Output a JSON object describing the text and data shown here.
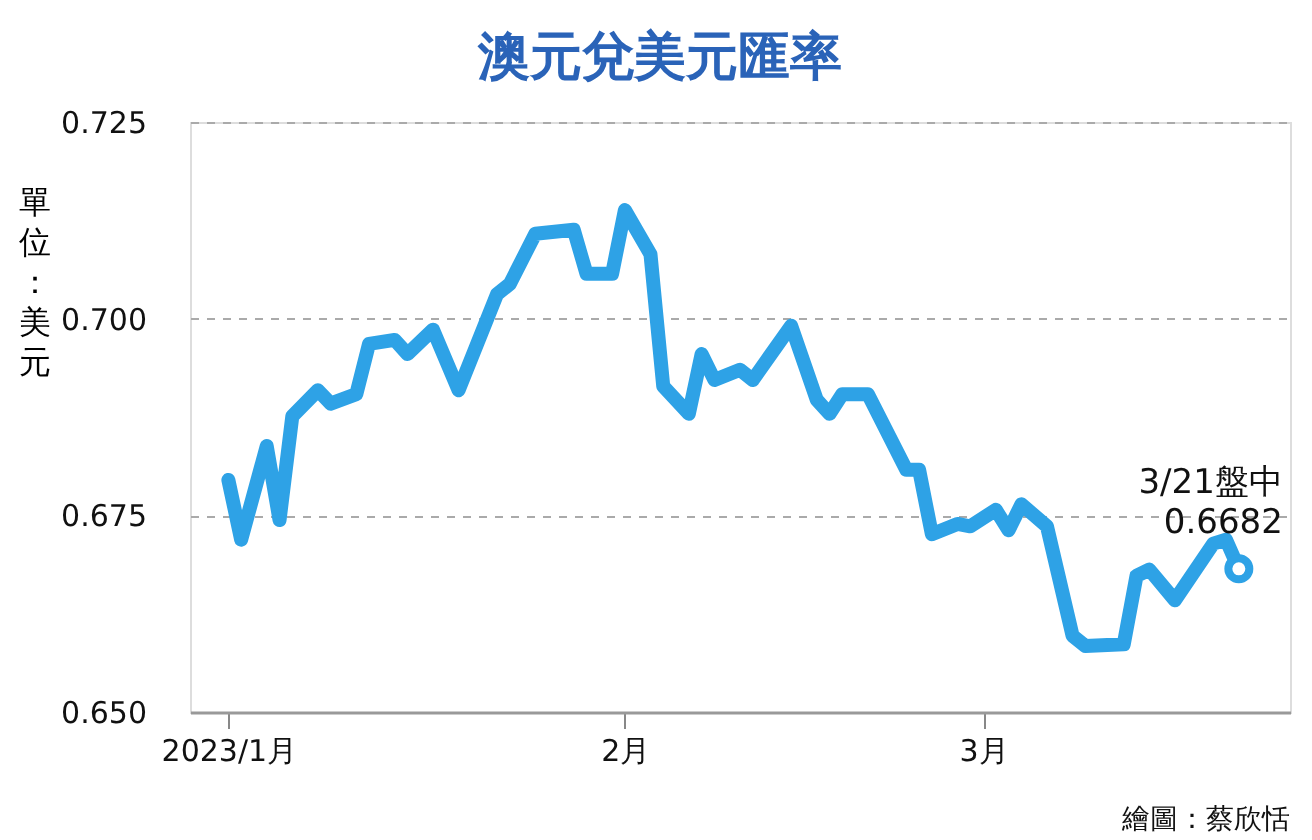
{
  "chart_data": {
    "type": "line",
    "title": "澳元兌美元匯率",
    "ylabel": "單位：美元",
    "x": [
      "2023-01-01",
      "2023-01-02",
      "2023-01-04",
      "2023-01-05",
      "2023-01-06",
      "2023-01-08",
      "2023-01-09",
      "2023-01-11",
      "2023-01-12",
      "2023-01-14",
      "2023-01-15",
      "2023-01-17",
      "2023-01-19",
      "2023-01-22",
      "2023-01-23",
      "2023-01-25",
      "2023-01-28",
      "2023-01-29",
      "2023-01-31",
      "2023-02-01",
      "2023-02-03",
      "2023-02-04",
      "2023-02-06",
      "2023-02-07",
      "2023-02-08",
      "2023-02-10",
      "2023-02-11",
      "2023-02-14",
      "2023-02-16",
      "2023-02-17",
      "2023-02-18",
      "2023-02-20",
      "2023-02-23",
      "2023-02-24",
      "2023-02-25",
      "2023-02-27",
      "2023-02-28",
      "2023-03-02",
      "2023-03-03",
      "2023-03-04",
      "2023-03-06",
      "2023-03-08",
      "2023-03-09",
      "2023-03-12",
      "2023-03-13",
      "2023-03-14",
      "2023-03-16",
      "2023-03-19",
      "2023-03-20",
      "2023-03-21"
    ],
    "series": [
      {
        "color": "#2ea2e6",
        "values": [
          0.6795,
          0.6719,
          0.6838,
          0.6744,
          0.6876,
          0.6909,
          0.6892,
          0.6904,
          0.6968,
          0.6973,
          0.6955,
          0.6986,
          0.6909,
          0.7031,
          0.7044,
          0.7108,
          0.7113,
          0.7057,
          0.7057,
          0.7138,
          0.7082,
          0.6914,
          0.6879,
          0.6955,
          0.6922,
          0.6935,
          0.6922,
          0.6991,
          0.6897,
          0.6879,
          0.6904,
          0.6904,
          0.6808,
          0.6808,
          0.6726,
          0.6739,
          0.6736,
          0.6757,
          0.6731,
          0.6764,
          0.6736,
          0.6597,
          0.6584,
          0.6586,
          0.6673,
          0.6681,
          0.6642,
          0.6714,
          0.6719,
          0.6682
        ]
      }
    ],
    "xlim": [
      "2022-12-29",
      "2023-03-25"
    ],
    "xticks": [
      {
        "value": "2023-01-01",
        "label": "2023/1月"
      },
      {
        "value": "2023-02-01",
        "label": "2月"
      },
      {
        "value": "2023-03-01",
        "label": "3月"
      }
    ],
    "ylim": [
      0.65,
      0.725
    ],
    "yticks": [
      {
        "value": 0.65,
        "label": "0.650"
      },
      {
        "value": 0.675,
        "label": "0.675"
      },
      {
        "value": 0.7,
        "label": "0.700"
      },
      {
        "value": 0.725,
        "label": "0.725"
      }
    ],
    "grid": "y",
    "marker": "none",
    "line_style": "solid",
    "annotations": [
      {
        "text": "3/21盤中\n0.6682",
        "x": "2023-03-21",
        "y": 0.6682
      },
      "繪圖：蔡欣恬"
    ]
  }
}
